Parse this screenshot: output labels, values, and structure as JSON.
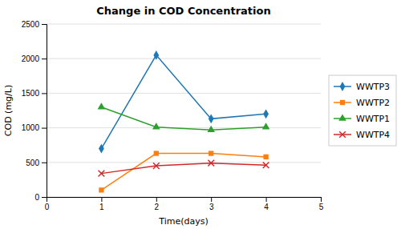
{
  "chart_data": {
    "type": "line",
    "title": "Change in COD Concentration",
    "xlabel": "Time(days)",
    "ylabel": "COD (mg/L)",
    "x": [
      1,
      2,
      3,
      4
    ],
    "series": [
      {
        "name": "WWTP3",
        "marker": "diamond",
        "values": [
          700,
          2050,
          1130,
          1200
        ]
      },
      {
        "name": "WWTP2",
        "marker": "square",
        "values": [
          100,
          630,
          630,
          580
        ]
      },
      {
        "name": "WWTP1",
        "marker": "triangle",
        "values": [
          1300,
          1010,
          970,
          1010
        ]
      },
      {
        "name": "WWTP4",
        "marker": "x",
        "values": [
          340,
          450,
          490,
          460
        ]
      }
    ],
    "xlim": [
      0,
      5
    ],
    "xticks": [
      0,
      1,
      2,
      3,
      4,
      5
    ],
    "ylim": [
      0,
      2500
    ],
    "yticks": [
      0,
      500,
      1000,
      1500,
      2000,
      2500
    ],
    "grid": true,
    "legend": "right"
  }
}
